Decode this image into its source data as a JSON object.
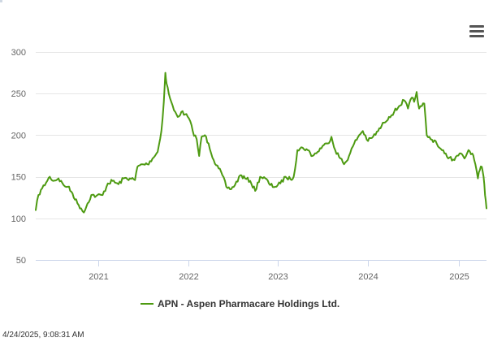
{
  "menu": {
    "icon": "hamburger-menu-icon"
  },
  "timestamp": "4/24/2025, 9:08:31 AM",
  "chart_data": {
    "type": "line",
    "title": "",
    "xlabel": "",
    "ylabel": "",
    "ylim": [
      50,
      300
    ],
    "xlim": [
      "2020-04-24",
      "2025-04-24"
    ],
    "y_ticks": [
      50,
      100,
      150,
      200,
      250,
      300
    ],
    "x_ticks": [
      "2021",
      "2022",
      "2023",
      "2024",
      "2025"
    ],
    "grid": {
      "horizontal": true,
      "vertical": false
    },
    "legend_placement": "bottom-center",
    "series": [
      {
        "name": "APN - Aspen Pharmacare Holdings Ltd.",
        "color": "#4d9a11",
        "points": [
          [
            "2020-04-24",
            110
          ],
          [
            "2020-05-05",
            128
          ],
          [
            "2020-05-20",
            136
          ],
          [
            "2020-06-05",
            143
          ],
          [
            "2020-06-20",
            150
          ],
          [
            "2020-07-05",
            145
          ],
          [
            "2020-07-25",
            148
          ],
          [
            "2020-08-15",
            140
          ],
          [
            "2020-09-01",
            138
          ],
          [
            "2020-09-20",
            130
          ],
          [
            "2020-10-10",
            118
          ],
          [
            "2020-10-25",
            112
          ],
          [
            "2020-11-05",
            107
          ],
          [
            "2020-11-20",
            118
          ],
          [
            "2020-12-05",
            128
          ],
          [
            "2020-12-25",
            127
          ],
          [
            "2021-01-20",
            128
          ],
          [
            "2021-02-10",
            142
          ],
          [
            "2021-03-01",
            145
          ],
          [
            "2021-03-25",
            141
          ],
          [
            "2021-04-15",
            148
          ],
          [
            "2021-05-10",
            148
          ],
          [
            "2021-05-31",
            146
          ],
          [
            "2021-06-10",
            162
          ],
          [
            "2021-06-30",
            165
          ],
          [
            "2021-07-20",
            165
          ],
          [
            "2021-08-10",
            172
          ],
          [
            "2021-08-31",
            180
          ],
          [
            "2021-09-15",
            205
          ],
          [
            "2021-09-25",
            240
          ],
          [
            "2021-10-01",
            275
          ],
          [
            "2021-10-06",
            262
          ],
          [
            "2021-10-15",
            250
          ],
          [
            "2021-10-25",
            240
          ],
          [
            "2021-11-05",
            230
          ],
          [
            "2021-11-20",
            222
          ],
          [
            "2021-12-05",
            228
          ],
          [
            "2021-12-20",
            225
          ],
          [
            "2022-01-05",
            220
          ],
          [
            "2022-01-20",
            205
          ],
          [
            "2022-02-05",
            195
          ],
          [
            "2022-02-15",
            175
          ],
          [
            "2022-02-25",
            198
          ],
          [
            "2022-03-10",
            200
          ],
          [
            "2022-03-25",
            190
          ],
          [
            "2022-04-15",
            170
          ],
          [
            "2022-05-05",
            160
          ],
          [
            "2022-05-20",
            152
          ],
          [
            "2022-06-05",
            138
          ],
          [
            "2022-06-20",
            135
          ],
          [
            "2022-07-10",
            140
          ],
          [
            "2022-08-01",
            152
          ],
          [
            "2022-08-20",
            148
          ],
          [
            "2022-09-10",
            145
          ],
          [
            "2022-09-30",
            133
          ],
          [
            "2022-10-20",
            150
          ],
          [
            "2022-11-10",
            148
          ],
          [
            "2022-11-30",
            140
          ],
          [
            "2022-12-20",
            138
          ],
          [
            "2023-01-10",
            142
          ],
          [
            "2023-01-31",
            150
          ],
          [
            "2023-02-20",
            147
          ],
          [
            "2023-03-05",
            150
          ],
          [
            "2023-03-20",
            182
          ],
          [
            "2023-04-10",
            185
          ],
          [
            "2023-05-01",
            182
          ],
          [
            "2023-05-20",
            175
          ],
          [
            "2023-06-10",
            180
          ],
          [
            "2023-06-30",
            187
          ],
          [
            "2023-07-20",
            190
          ],
          [
            "2023-08-05",
            198
          ],
          [
            "2023-08-20",
            182
          ],
          [
            "2023-09-10",
            172
          ],
          [
            "2023-09-25",
            165
          ],
          [
            "2023-10-15",
            175
          ],
          [
            "2023-11-05",
            190
          ],
          [
            "2023-11-25",
            200
          ],
          [
            "2023-12-10",
            205
          ],
          [
            "2023-12-31",
            193
          ],
          [
            "2024-01-20",
            198
          ],
          [
            "2024-02-10",
            205
          ],
          [
            "2024-03-05",
            215
          ],
          [
            "2024-03-25",
            222
          ],
          [
            "2024-04-15",
            228
          ],
          [
            "2024-05-05",
            235
          ],
          [
            "2024-05-25",
            242
          ],
          [
            "2024-06-10",
            232
          ],
          [
            "2024-06-25",
            245
          ],
          [
            "2024-07-05",
            240
          ],
          [
            "2024-07-15",
            252
          ],
          [
            "2024-07-25",
            232
          ],
          [
            "2024-08-05",
            235
          ],
          [
            "2024-08-15",
            238
          ],
          [
            "2024-08-25",
            200
          ],
          [
            "2024-09-10",
            195
          ],
          [
            "2024-09-30",
            193
          ],
          [
            "2024-10-15",
            185
          ],
          [
            "2024-11-05",
            178
          ],
          [
            "2024-11-25",
            173
          ],
          [
            "2024-12-15",
            170
          ],
          [
            "2025-01-05",
            178
          ],
          [
            "2025-01-25",
            172
          ],
          [
            "2025-02-10",
            182
          ],
          [
            "2025-02-25",
            178
          ],
          [
            "2025-03-10",
            165
          ],
          [
            "2025-03-20",
            148
          ],
          [
            "2025-03-28",
            158
          ],
          [
            "2025-04-05",
            162
          ],
          [
            "2025-04-12",
            150
          ],
          [
            "2025-04-18",
            128
          ],
          [
            "2025-04-24",
            112
          ]
        ]
      }
    ]
  }
}
